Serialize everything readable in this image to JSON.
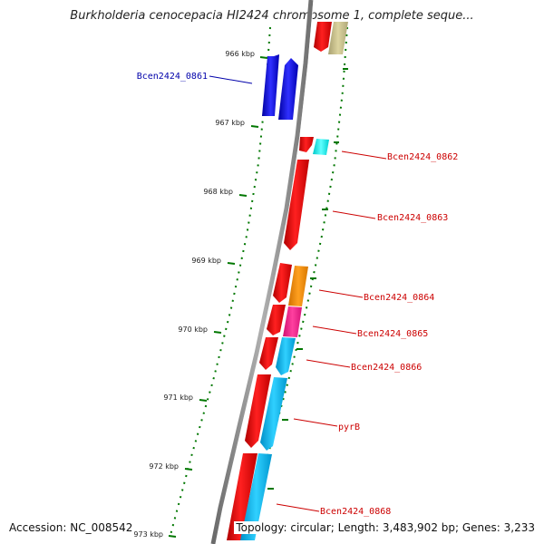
{
  "title": "Burkholderia cenocepacia HI2424 chromosome 1, complete seque...",
  "footer": {
    "accession": "Accession: NC_008542",
    "summary": "Topology: circular; Length: 3,483,902 bp; Genes: 3,233"
  },
  "scale": {
    "ticks": [
      {
        "label": "966 kbp",
        "kbp": 966
      },
      {
        "label": "967 kbp",
        "kbp": 967
      },
      {
        "label": "968 kbp",
        "kbp": 968
      },
      {
        "label": "969 kbp",
        "kbp": 969
      },
      {
        "label": "970 kbp",
        "kbp": 970
      },
      {
        "label": "971 kbp",
        "kbp": 971
      },
      {
        "label": "972 kbp",
        "kbp": 972
      },
      {
        "label": "973 kbp",
        "kbp": 973
      }
    ]
  },
  "colors": {
    "blue": "#0000ff",
    "red": "#ff0000",
    "cyan": "#00ffff",
    "orange": "#ff8c00",
    "magenta": "#ff1493",
    "skyblue": "#00bfff",
    "khaki": "#c8c08a",
    "tick_green": "#007700",
    "backbone": "#8c8c8c",
    "label_red": "#cc0000",
    "label_blue": "#0000aa"
  },
  "gene_labels": [
    {
      "name": "Bcen2424_0861",
      "color": "#0000aa"
    },
    {
      "name": "Bcen2424_0862",
      "color": "#cc0000"
    },
    {
      "name": "Bcen2424_0863",
      "color": "#cc0000"
    },
    {
      "name": "Bcen2424_0864",
      "color": "#cc0000"
    },
    {
      "name": "Bcen2424_0865",
      "color": "#cc0000"
    },
    {
      "name": "Bcen2424_0866",
      "color": "#cc0000"
    },
    {
      "name": "pyrB",
      "color": "#cc0000"
    },
    {
      "name": "Bcen2424_0868",
      "color": "#cc0000"
    }
  ]
}
